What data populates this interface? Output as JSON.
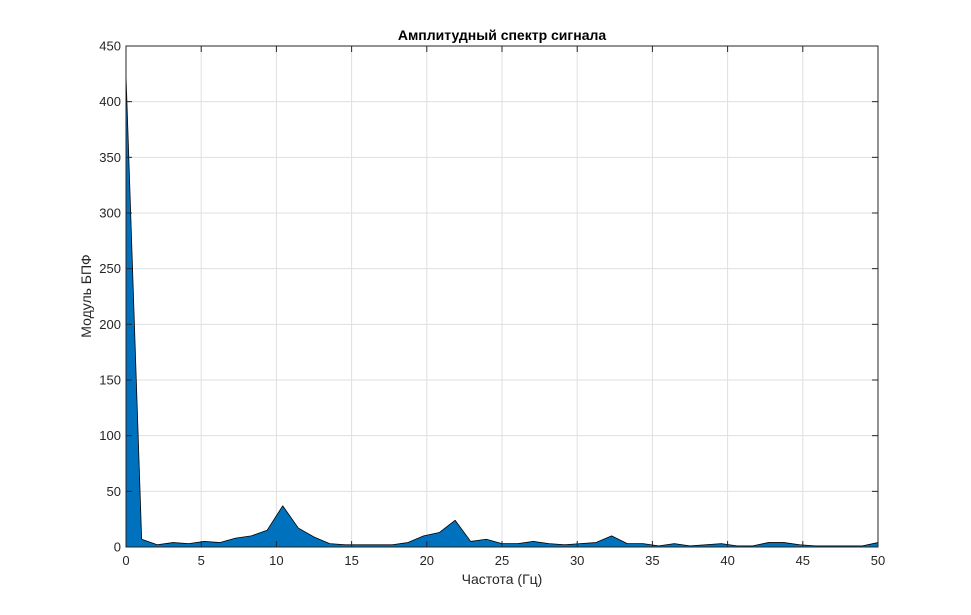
{
  "chart_data": {
    "type": "area",
    "title": "Амплитудный спектр сигнала",
    "xlabel": "Частота (Гц)",
    "ylabel": "Модуль БПФ",
    "xlim": [
      0,
      50
    ],
    "ylim": [
      0,
      450
    ],
    "xticks": [
      0,
      5,
      10,
      15,
      20,
      25,
      30,
      35,
      40,
      45,
      50
    ],
    "yticks": [
      0,
      50,
      100,
      150,
      200,
      250,
      300,
      350,
      400,
      450
    ],
    "grid": true,
    "colors": {
      "fill": "#0072BD",
      "edge": "#000000",
      "grid": "#dfdfdf",
      "axis": "#262626"
    },
    "x": [
      0,
      1.04,
      2.08,
      3.13,
      4.17,
      5.21,
      6.25,
      7.29,
      8.33,
      9.38,
      10.42,
      11.46,
      12.5,
      13.54,
      14.58,
      15.63,
      16.67,
      17.71,
      18.75,
      19.79,
      20.83,
      21.88,
      22.92,
      23.96,
      25.0,
      26.04,
      27.08,
      28.13,
      29.17,
      30.21,
      31.25,
      32.29,
      33.33,
      34.38,
      35.42,
      36.46,
      37.5,
      38.54,
      39.58,
      40.63,
      41.67,
      42.71,
      43.75,
      44.79,
      45.83,
      46.88,
      47.92,
      48.96,
      50.0
    ],
    "values": [
      424,
      7,
      2,
      4,
      3,
      5,
      4,
      8,
      10,
      15,
      37,
      17,
      9,
      3,
      2,
      2,
      2,
      2,
      4,
      10,
      13,
      24,
      5,
      7,
      3,
      3,
      5,
      3,
      2,
      3,
      4,
      10,
      3,
      3,
      1,
      3,
      1,
      2,
      3,
      1,
      1,
      4,
      4,
      2,
      1,
      1,
      1,
      1,
      4
    ]
  }
}
